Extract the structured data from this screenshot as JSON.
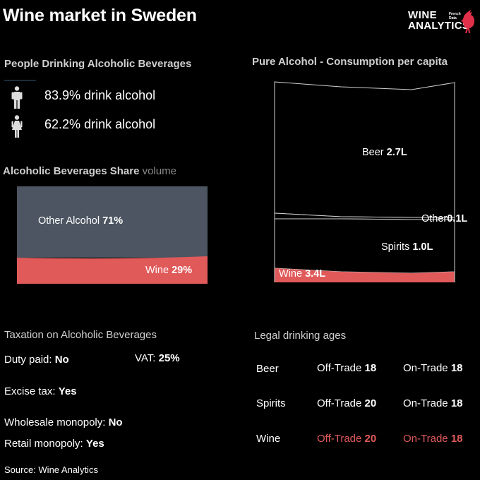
{
  "title": "Wine market in Sweden",
  "logo": {
    "line1": "WINE",
    "line2": "ANALYTICS",
    "small": "French Data",
    "icon": "rooster-icon"
  },
  "people": {
    "heading": "People Drinking Alcoholic Beverages",
    "men": {
      "icon": "man-icon",
      "pct": "83.9%",
      "text": "drink alcohol"
    },
    "women": {
      "icon": "woman-icon",
      "pct": "62.2%",
      "text": "drink alcohol"
    }
  },
  "share": {
    "heading": "Alcoholic Beverages Share",
    "heading_light": "volume",
    "other_label": "Other Alcohol",
    "other_pct": "71%",
    "wine_label": "Wine",
    "wine_pct": "29%",
    "colors": {
      "other": "#4c5561",
      "wine": "#e05a5a"
    }
  },
  "pure": {
    "heading": "Pure Alcohol - Consumption per capita",
    "beer_label": "Beer",
    "beer_val": "2.7L",
    "other_label": "Other",
    "other_val": "0.1L",
    "spirits_label": "Spirits",
    "spirits_val": "1.0L",
    "wine_label": "Wine",
    "wine_val": "3.4L"
  },
  "chart_data": [
    {
      "type": "bar",
      "stacked": true,
      "title": "Alcoholic Beverages Share volume",
      "categories": [
        "Wine",
        "Other Alcohol"
      ],
      "values": [
        29,
        71
      ],
      "unit": "%"
    },
    {
      "type": "area",
      "stacked": true,
      "title": "Pure Alcohol - Consumption per capita",
      "categories": [
        "Wine",
        "Spirits",
        "Other",
        "Beer"
      ],
      "values": [
        3.4,
        1.0,
        0.1,
        2.7
      ],
      "unit": "L"
    }
  ],
  "taxation": {
    "heading": "Taxation on Alcoholic Beverages",
    "duty_label": "Duty paid:",
    "duty_val": "No",
    "vat_label": "VAT:",
    "vat_val": "25%",
    "excise_label": "Excise tax:",
    "excise_val": "Yes",
    "wholesale_label": "Wholesale monopoly:",
    "wholesale_val": "No",
    "retail_label": "Retail monopoly:",
    "retail_val": "Yes"
  },
  "ages": {
    "heading": "Legal drinking ages",
    "off_label": "Off-Trade",
    "on_label": "On-Trade",
    "rows": [
      {
        "name": "Beer",
        "off": "18",
        "on": "18"
      },
      {
        "name": "Spirits",
        "off": "20",
        "on": "18"
      },
      {
        "name": "Wine",
        "off": "20",
        "on": "18"
      }
    ]
  },
  "source": "Source: Wine Analytics"
}
